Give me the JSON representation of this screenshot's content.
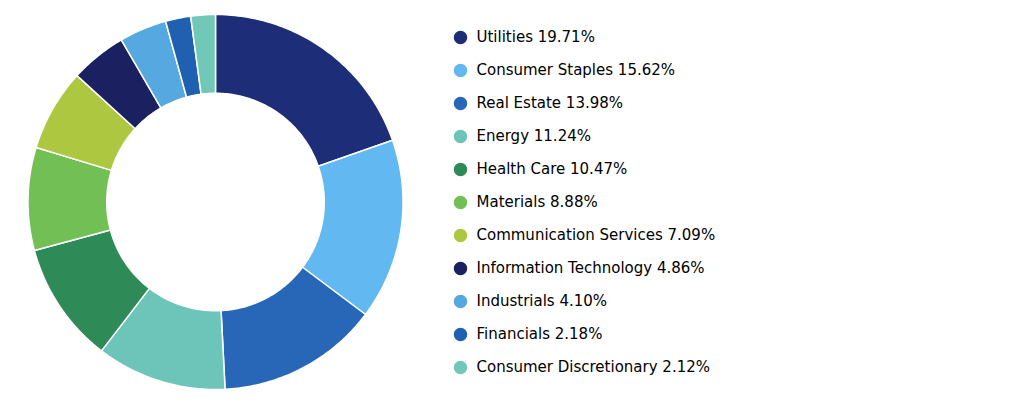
{
  "chart_data": {
    "type": "pie",
    "categories": [
      "Utilities 19.71%",
      "Consumer Staples 15.62%",
      "Real Estate 13.98%",
      "Energy 11.24%",
      "Health Care 10.47%",
      "Materials 8.88%",
      "Communication Services 7.09%",
      "Information Technology 4.86%",
      "Industrials 4.10%",
      "Financials 2.18%",
      "Consumer Discretionary 2.12%"
    ],
    "values": [
      19.71,
      15.62,
      13.98,
      11.24,
      10.47,
      8.88,
      7.09,
      4.86,
      4.1,
      2.18,
      2.12
    ],
    "colors": [
      "#1e2d78",
      "#62b8f0",
      "#2866b8",
      "#6dc4b8",
      "#2e8b57",
      "#72c055",
      "#adc840",
      "#1a2060",
      "#55a8e0",
      "#2060b0",
      "#72c8b8"
    ],
    "legend": "right"
  }
}
